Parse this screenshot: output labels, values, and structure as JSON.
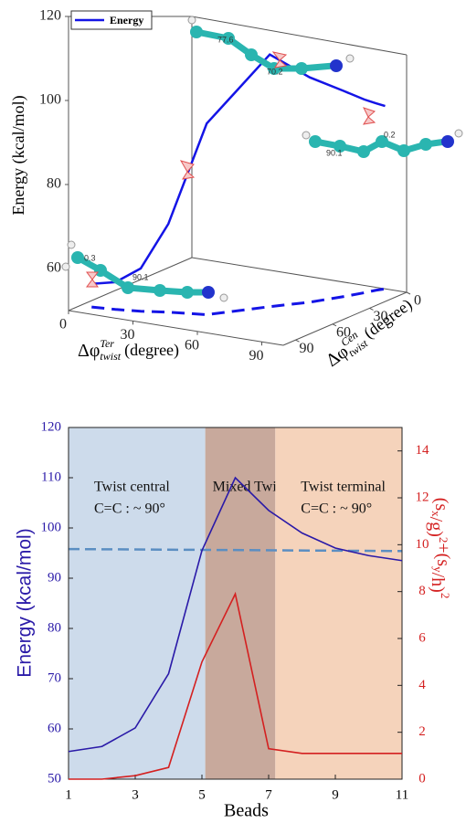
{
  "chart_data": [
    {
      "type": "line3d",
      "zlabel": "Energy (kcal/mol)",
      "xlabel": {
        "base": "Δφ",
        "sup": "Ter",
        "sub": "twist",
        "unit": "(degree)"
      },
      "ylabel": {
        "base": "Δφ",
        "sup": "Cen",
        "sub": "twist",
        "unit": "(degree)"
      },
      "xlim": [
        0,
        100
      ],
      "ylim": [
        0,
        100
      ],
      "zlim": [
        50,
        120
      ],
      "xticks": [
        0,
        30,
        60,
        90
      ],
      "yticks": [
        0,
        30,
        60,
        90
      ],
      "zticks": [
        60,
        80,
        100,
        120
      ],
      "legend": "upper left",
      "series": [
        {
          "name": "Energy",
          "color": "#1414e6",
          "x": [
            5,
            15,
            25,
            35,
            50,
            65,
            75,
            82,
            86,
            88,
            90
          ],
          "y": [
            90,
            88,
            85,
            80,
            75,
            50,
            35,
            20,
            10,
            4,
            0
          ],
          "values": [
            55.5,
            56.5,
            60.2,
            71,
            95.5,
            110,
            103.5,
            99,
            96,
            94.5,
            93.5
          ]
        }
      ],
      "projection": {
        "color": "#1414e6",
        "dashed": true
      },
      "annotations": [
        "0.3",
        "90.1",
        "77.6",
        "70.2",
        "90.1",
        "0.2"
      ]
    },
    {
      "type": "line",
      "xlabel": "Beads",
      "ylabel": "Energy (kcal/mol)",
      "y2label": [
        {
          "text": "(s"
        },
        {
          "sub": "x"
        },
        {
          "text": "/g)"
        },
        {
          "sup": "2"
        },
        {
          "text": "+(s"
        },
        {
          "sub": "y"
        },
        {
          "text": "/h)"
        },
        {
          "sup": "2"
        }
      ],
      "x": [
        1,
        2,
        3,
        4,
        5,
        6,
        7,
        8,
        9,
        10,
        11
      ],
      "xlim": [
        1,
        11
      ],
      "xticks": [
        1,
        3,
        5,
        7,
        9,
        11
      ],
      "ylim": [
        50,
        120
      ],
      "yticks": [
        50,
        60,
        70,
        80,
        90,
        100,
        110,
        120
      ],
      "y2lim": [
        0,
        15
      ],
      "y2ticks": [
        0,
        2,
        4,
        6,
        8,
        10,
        12,
        14
      ],
      "series": [
        {
          "color": "#2a1aa8",
          "values": [
            55.5,
            56.5,
            60.2,
            71,
            95.5,
            110,
            103.5,
            99,
            96,
            94.5,
            93.5
          ]
        },
        {
          "color": "#d42020",
          "axis": "y2",
          "values": [
            0,
            0,
            0.15,
            0.5,
            5,
            7.9,
            1.3,
            1.1,
            1.1,
            1.1,
            1.1
          ]
        }
      ],
      "reference_line": {
        "values": [
          95.8,
          95.4
        ],
        "color": "#5b8ec2",
        "dashed": true
      },
      "regions": [
        {
          "x": [
            1,
            5.1
          ],
          "color": "#cddbeb",
          "labels": [
            "Twist central",
            "C=C : ~ 90°"
          ]
        },
        {
          "x": [
            5.1,
            7.2
          ],
          "color": "#c8a99c",
          "labels": [
            "Mixed Twist"
          ]
        },
        {
          "x": [
            7.2,
            11
          ],
          "color": "#f5d3bb",
          "labels": [
            "Twist terminal",
            "C=C : ~ 90°"
          ]
        }
      ]
    }
  ]
}
